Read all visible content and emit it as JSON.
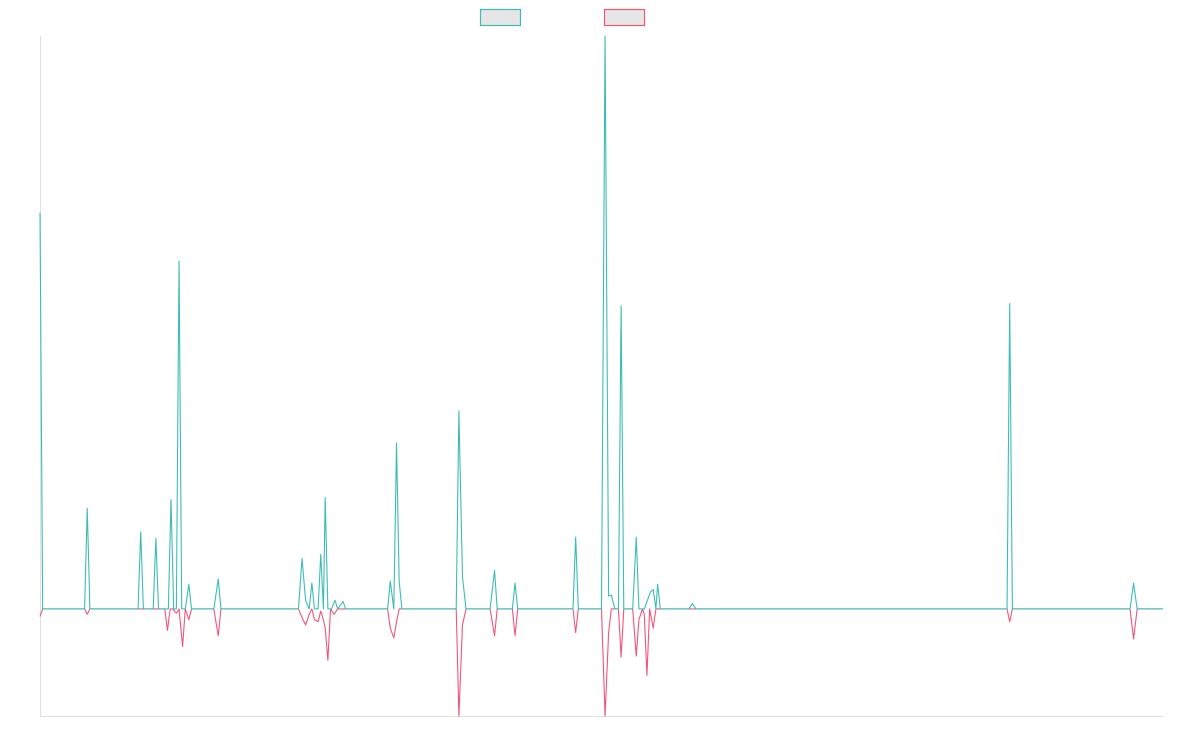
{
  "chart_data": {
    "type": "line",
    "title": "",
    "xlabel": "",
    "ylabel": "",
    "legend": {
      "placement": "top-center",
      "shown": true
    },
    "grid": false,
    "ylim": [
      -100,
      535
    ],
    "series": [
      {
        "color": "#3dbcb5",
        "points": [
          [
            0,
            370
          ],
          [
            3,
            0
          ],
          [
            15,
            0
          ],
          [
            50,
            0
          ],
          [
            53,
            94
          ],
          [
            56,
            0
          ],
          [
            110,
            0
          ],
          [
            113,
            72
          ],
          [
            116,
            0
          ],
          [
            127,
            0
          ],
          [
            130,
            66
          ],
          [
            133,
            0
          ],
          [
            144,
            0
          ],
          [
            147,
            102
          ],
          [
            150,
            0
          ],
          [
            153,
            0
          ],
          [
            156,
            325
          ],
          [
            159,
            0
          ],
          [
            163,
            0
          ],
          [
            167,
            23
          ],
          [
            170,
            0
          ],
          [
            195,
            0
          ],
          [
            200,
            28
          ],
          [
            203,
            0
          ],
          [
            290,
            0
          ],
          [
            294,
            47
          ],
          [
            298,
            8
          ],
          [
            302,
            0
          ],
          [
            305,
            24
          ],
          [
            308,
            0
          ],
          [
            312,
            0
          ],
          [
            315,
            51
          ],
          [
            318,
            0
          ],
          [
            320,
            104
          ],
          [
            323,
            0
          ],
          [
            327,
            0
          ],
          [
            331,
            8
          ],
          [
            334,
            0
          ],
          [
            340,
            7
          ],
          [
            343,
            0
          ],
          [
            390,
            0
          ],
          [
            393,
            26
          ],
          [
            397,
            0
          ],
          [
            400,
            155
          ],
          [
            403,
            26
          ],
          [
            406,
            0
          ],
          [
            467,
            0
          ],
          [
            470,
            185
          ],
          [
            474,
            30
          ],
          [
            478,
            0
          ],
          [
            505,
            0
          ],
          [
            510,
            36
          ],
          [
            513,
            0
          ],
          [
            530,
            0
          ],
          [
            533,
            24
          ],
          [
            536,
            0
          ],
          [
            598,
            0
          ],
          [
            601,
            67
          ],
          [
            604,
            0
          ],
          [
            630,
            0
          ],
          [
            634,
            535
          ],
          [
            638,
            12
          ],
          [
            641,
            13
          ],
          [
            645,
            0
          ],
          [
            649,
            0
          ],
          [
            652,
            283
          ],
          [
            655,
            0
          ],
          [
            665,
            0
          ],
          [
            669,
            67
          ],
          [
            672,
            0
          ],
          [
            678,
            0
          ],
          [
            685,
            16
          ],
          [
            688,
            18
          ],
          [
            691,
            0
          ],
          [
            693,
            23
          ],
          [
            696,
            0
          ],
          [
            728,
            0
          ],
          [
            732,
            5
          ],
          [
            736,
            0
          ],
          [
            1085,
            0
          ],
          [
            1088,
            285
          ],
          [
            1091,
            0
          ],
          [
            1223,
            0
          ],
          [
            1227,
            24
          ],
          [
            1231,
            0
          ],
          [
            1260,
            0
          ]
        ]
      },
      {
        "color": "#f0557a",
        "points": [
          [
            0,
            -7
          ],
          [
            3,
            0
          ],
          [
            15,
            0
          ],
          [
            50,
            0
          ],
          [
            53,
            -5
          ],
          [
            56,
            0
          ],
          [
            110,
            0
          ],
          [
            113,
            0
          ],
          [
            116,
            0
          ],
          [
            140,
            0
          ],
          [
            143,
            -20
          ],
          [
            146,
            0
          ],
          [
            149,
            0
          ],
          [
            153,
            -4
          ],
          [
            156,
            0
          ],
          [
            160,
            -35
          ],
          [
            163,
            0
          ],
          [
            167,
            -10
          ],
          [
            170,
            0
          ],
          [
            195,
            0
          ],
          [
            200,
            -25
          ],
          [
            203,
            0
          ],
          [
            290,
            0
          ],
          [
            294,
            -8
          ],
          [
            298,
            -15
          ],
          [
            302,
            -5
          ],
          [
            305,
            0
          ],
          [
            308,
            -10
          ],
          [
            312,
            -12
          ],
          [
            315,
            -2
          ],
          [
            318,
            -10
          ],
          [
            320,
            -18
          ],
          [
            323,
            -48
          ],
          [
            326,
            0
          ],
          [
            330,
            -5
          ],
          [
            334,
            0
          ],
          [
            390,
            0
          ],
          [
            393,
            -18
          ],
          [
            397,
            -27
          ],
          [
            400,
            -12
          ],
          [
            403,
            0
          ],
          [
            467,
            0
          ],
          [
            470,
            -100
          ],
          [
            474,
            -15
          ],
          [
            478,
            0
          ],
          [
            505,
            0
          ],
          [
            510,
            -25
          ],
          [
            513,
            0
          ],
          [
            530,
            0
          ],
          [
            533,
            -25
          ],
          [
            536,
            0
          ],
          [
            598,
            0
          ],
          [
            601,
            -22
          ],
          [
            604,
            0
          ],
          [
            630,
            0
          ],
          [
            634,
            -100
          ],
          [
            638,
            -22
          ],
          [
            641,
            0
          ],
          [
            649,
            0
          ],
          [
            652,
            -45
          ],
          [
            655,
            0
          ],
          [
            665,
            0
          ],
          [
            669,
            -44
          ],
          [
            672,
            -10
          ],
          [
            676,
            0
          ],
          [
            678,
            -5
          ],
          [
            681,
            -62
          ],
          [
            684,
            0
          ],
          [
            688,
            -18
          ],
          [
            691,
            0
          ],
          [
            728,
            0
          ],
          [
            732,
            0
          ],
          [
            1085,
            0
          ],
          [
            1088,
            -12
          ],
          [
            1091,
            0
          ],
          [
            1223,
            0
          ],
          [
            1227,
            -28
          ],
          [
            1231,
            0
          ],
          [
            1260,
            0
          ]
        ]
      }
    ]
  },
  "colors": {
    "axis": "#e0e0e0",
    "legend_fill": "#e6e6e6"
  }
}
